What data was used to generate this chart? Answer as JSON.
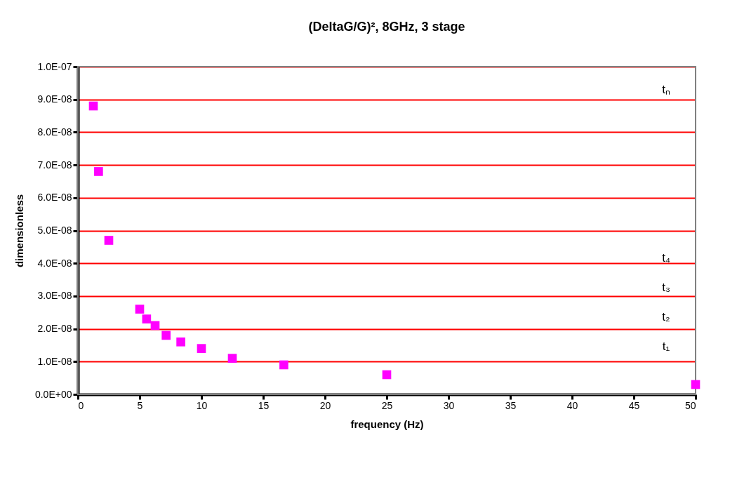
{
  "chart_data": {
    "type": "scatter",
    "title": "(DeltaG/G)², 8GHz, 3 stage",
    "xlabel": "frequency (Hz)",
    "ylabel": "dimensionless",
    "x": [
      1.25,
      1.67,
      2.5,
      5,
      5.56,
      6.25,
      7.14,
      8.33,
      10,
      12.5,
      16.67,
      25,
      50
    ],
    "series": [
      {
        "color": "#ff00ff",
        "values": [
          8.8e-08,
          6.8e-08,
          4.7e-08,
          2.6e-08,
          2.3e-08,
          2.1e-08,
          1.8e-08,
          1.6e-08,
          1.4e-08,
          1.1e-08,
          9e-09,
          6e-09,
          3e-09
        ]
      }
    ],
    "xlim": [
      0,
      50
    ],
    "xticks": [
      0,
      5,
      10,
      15,
      20,
      25,
      30,
      35,
      40,
      45,
      50
    ],
    "ylim": [
      0,
      1e-07
    ],
    "yticks": [
      {
        "value": 0,
        "label": "0.0E+00"
      },
      {
        "value": 1e-08,
        "label": "1.0E-08"
      },
      {
        "value": 2e-08,
        "label": "2.0E-08"
      },
      {
        "value": 3e-08,
        "label": "3.0E-08"
      },
      {
        "value": 4e-08,
        "label": "4.0E-08"
      },
      {
        "value": 5e-08,
        "label": "5.0E-08"
      },
      {
        "value": 6e-08,
        "label": "6.0E-08"
      },
      {
        "value": 7e-08,
        "label": "7.0E-08"
      },
      {
        "value": 8e-08,
        "label": "8.0E-08"
      },
      {
        "value": 9e-08,
        "label": "9.0E-08"
      },
      {
        "value": 1e-07,
        "label": "1.0E-07"
      }
    ],
    "annotations": [
      "tₙ",
      "t₄",
      "t₃",
      "t₂",
      "t₁"
    ],
    "grid": "y",
    "marker": "square",
    "legend": false
  }
}
